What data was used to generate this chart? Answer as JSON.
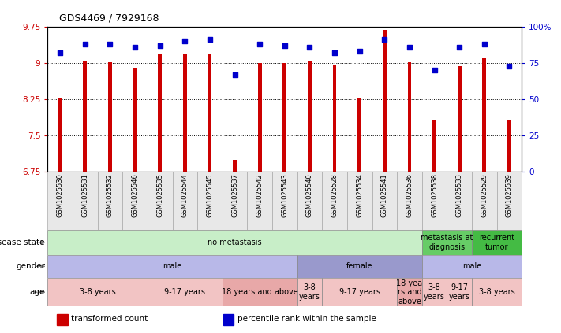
{
  "title": "GDS4469 / 7929168",
  "samples": [
    "GSM1025530",
    "GSM1025531",
    "GSM1025532",
    "GSM1025546",
    "GSM1025535",
    "GSM1025544",
    "GSM1025545",
    "GSM1025537",
    "GSM1025542",
    "GSM1025543",
    "GSM1025540",
    "GSM1025528",
    "GSM1025534",
    "GSM1025541",
    "GSM1025536",
    "GSM1025538",
    "GSM1025533",
    "GSM1025529",
    "GSM1025539"
  ],
  "bar_values": [
    8.28,
    9.04,
    9.01,
    8.88,
    9.18,
    9.18,
    9.18,
    7.0,
    9.0,
    9.0,
    9.05,
    8.95,
    8.27,
    9.69,
    9.01,
    7.83,
    8.93,
    9.1,
    7.82
  ],
  "dot_values": [
    82,
    88,
    88,
    86,
    87,
    90,
    91,
    67,
    88,
    87,
    86,
    82,
    83,
    91,
    86,
    70,
    86,
    88,
    73
  ],
  "ylim_left": [
    6.75,
    9.75
  ],
  "ylim_right": [
    0,
    100
  ],
  "yticks_left": [
    6.75,
    7.5,
    8.25,
    9.0,
    9.75
  ],
  "yticks_right": [
    0,
    25,
    50,
    75,
    100
  ],
  "ytick_labels_left": [
    "6.75",
    "7.5",
    "8.25",
    "9",
    "9.75"
  ],
  "ytick_labels_right": [
    "0",
    "25",
    "50",
    "75",
    "100%"
  ],
  "bar_color": "#cc0000",
  "dot_color": "#0000cc",
  "bar_width": 0.15,
  "disease_state_segs": [
    {
      "start": 0,
      "end": 15,
      "label": "no metastasis",
      "color": "#c8eec8"
    },
    {
      "start": 15,
      "end": 17,
      "label": "metastasis at\ndiagnosis",
      "color": "#66cc66"
    },
    {
      "start": 17,
      "end": 19,
      "label": "recurrent\ntumor",
      "color": "#44bb44"
    }
  ],
  "gender_segs": [
    {
      "start": 0,
      "end": 10,
      "label": "male",
      "color": "#b8b8e8"
    },
    {
      "start": 10,
      "end": 15,
      "label": "female",
      "color": "#9999cc"
    },
    {
      "start": 15,
      "end": 19,
      "label": "male",
      "color": "#b8b8e8"
    }
  ],
  "age_segs": [
    {
      "start": 0,
      "end": 4,
      "label": "3-8 years",
      "color": "#f2c4c4"
    },
    {
      "start": 4,
      "end": 7,
      "label": "9-17 years",
      "color": "#f2c4c4"
    },
    {
      "start": 7,
      "end": 10,
      "label": "18 years and above",
      "color": "#e8a8a8"
    },
    {
      "start": 10,
      "end": 11,
      "label": "3-8\nyears",
      "color": "#f2c4c4"
    },
    {
      "start": 11,
      "end": 14,
      "label": "9-17 years",
      "color": "#f2c4c4"
    },
    {
      "start": 14,
      "end": 15,
      "label": "18 yea\nrs and\nabove",
      "color": "#e8a8a8"
    },
    {
      "start": 15,
      "end": 16,
      "label": "3-8\nyears",
      "color": "#f2c4c4"
    },
    {
      "start": 16,
      "end": 17,
      "label": "9-17\nyears",
      "color": "#f2c4c4"
    },
    {
      "start": 17,
      "end": 19,
      "label": "3-8 years",
      "color": "#f2c4c4"
    }
  ],
  "row_labels": [
    "disease state",
    "gender",
    "age"
  ],
  "legend_items": [
    "transformed count",
    "percentile rank within the sample"
  ],
  "legend_colors": [
    "#cc0000",
    "#0000cc"
  ]
}
